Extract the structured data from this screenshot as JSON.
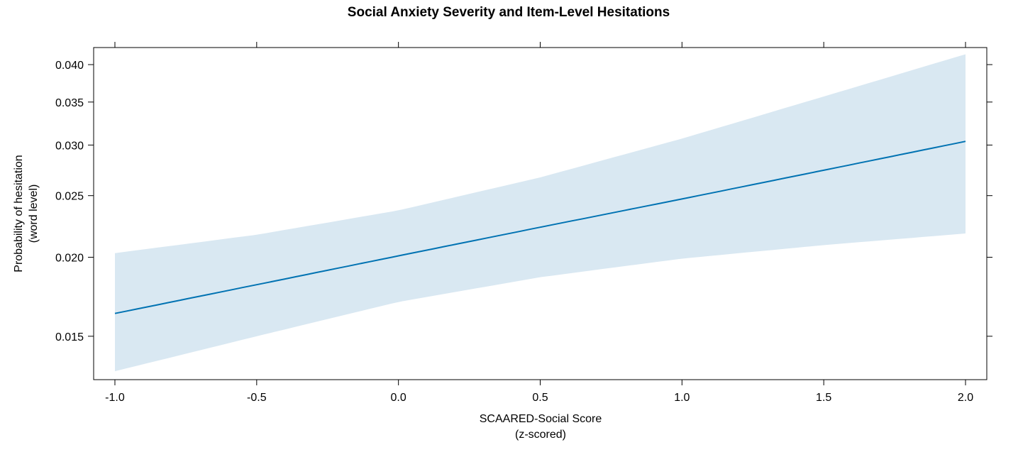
{
  "chart_data": {
    "type": "line",
    "title": "Social Anxiety Severity and Item-Level Hesitations",
    "xlabel": [
      "SCAARED-Social Score",
      "(z-scored)"
    ],
    "ylabel": [
      "Probability of hesitation",
      "(word level)"
    ],
    "xlim": [
      -1.075,
      2.075
    ],
    "ylim": [
      0.0128,
      0.0425
    ],
    "y_scale": "logit",
    "x_ticks": [
      -1.0,
      -0.5,
      0.0,
      0.5,
      1.0,
      1.5,
      2.0
    ],
    "x_tick_labels": [
      "-1.0",
      "-0.5",
      "0.0",
      "0.5",
      "1.0",
      "1.5",
      "2.0"
    ],
    "y_ticks": [
      0.015,
      0.02,
      0.025,
      0.03,
      0.035,
      0.04
    ],
    "y_tick_labels": [
      "0.015",
      "0.020",
      "0.025",
      "0.030",
      "0.035",
      "0.040"
    ],
    "grid": false,
    "series": [
      {
        "line_color": "#0072B2",
        "band_color": "#d9e8f2",
        "x": [
          -1.0,
          -0.5,
          0.0,
          0.5,
          1.0,
          1.5,
          2.0
        ],
        "y": [
          0.0163,
          0.0181,
          0.0201,
          0.0223,
          0.0247,
          0.0274,
          0.0304
        ],
        "lower": [
          0.0132,
          0.015,
          0.017,
          0.0186,
          0.0199,
          0.0209,
          0.0218
        ],
        "upper": [
          0.0203,
          0.0217,
          0.0237,
          0.0267,
          0.0307,
          0.0357,
          0.0415
        ]
      }
    ]
  }
}
